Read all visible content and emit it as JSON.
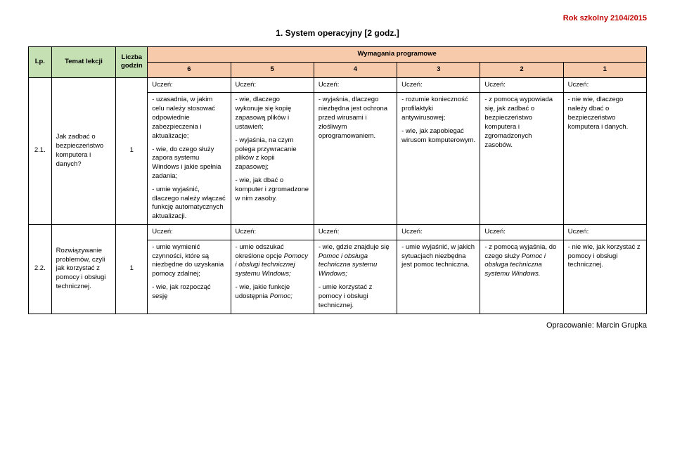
{
  "header_right": "Rok szkolny 2104/2015",
  "title": "1.   System operacyjny [2 godz.]",
  "footer_right": "Opracowanie: Marcin Grupka",
  "columns": {
    "lp": "Lp.",
    "topic": "Temat lekcji",
    "hours": "Liczba godzin",
    "req_header": "Wymagania programowe",
    "levels": [
      "6",
      "5",
      "4",
      "3",
      "2",
      "1"
    ]
  },
  "uczen_label": "Uczeń:",
  "rows": [
    {
      "lp": "2.1.",
      "topic": "Jak zadbać o bezpieczeństwo komputera i danych?",
      "hours": "1",
      "cells": [
        [
          "- uzasadnia, w jakim celu należy stosować odpowiednie zabezpieczenia i aktualizacje;",
          "- wie, do czego służy zapora systemu Windows i jakie spełnia zadania;",
          "- umie wyjaśnić, dlaczego należy włączać funkcję automatycznych aktualizacji."
        ],
        [
          "- wie, dlaczego wykonuje się kopię zapasową plików i ustawień;",
          "- wyjaśnia, na czym polega przywracanie plików z kopii zapasowej;",
          "- wie, jak dbać o komputer i zgromadzone w nim zasoby."
        ],
        [
          "- wyjaśnia, dlaczego niezbędna jest ochrona przed wirusami i złośliwym oprogramowaniem."
        ],
        [
          "- rozumie konieczność profilaktyki antywirusowej;",
          "- wie, jak zapobiegać wirusom komputerowym."
        ],
        [
          "- z pomocą wypowiada się, jak zadbać o bezpieczeństwo komputera i zgromadzonych zasobów."
        ],
        [
          "- nie wie, dlaczego należy dbać o bezpieczeństwo komputera i danych."
        ]
      ]
    },
    {
      "lp": "2.2.",
      "topic": "Rozwiązywanie problemów, czyli jak korzystać z pomocy i obsługi technicznej.",
      "hours": "1",
      "cells": [
        [
          "- umie wymienić czynności, które są niezbędne do uzyskania pomocy zdalnej;",
          "- wie, jak rozpocząć sesję"
        ],
        [
          "- umie odszukać określone opcje <i>Pomocy i obsługi technicznej systemu Windows;</i>",
          "- wie, jakie funkcje udostępnia <i>Pomoc;</i>"
        ],
        [
          "- wie, gdzie znajduje się <i>Pomoc i obsługa techniczna systemu Windows;</i>",
          "- umie korzystać z pomocy i obsługi technicznej."
        ],
        [
          "- umie wyjaśnić, w jakich sytuacjach niezbędna jest pomoc techniczna."
        ],
        [
          "- z pomocą wyjaśnia, do czego służy <i>Pomoc i obsługa techniczna systemu Windows.</i>"
        ],
        [
          "- nie wie, jak korzystać z pomocy i obsługi technicznej."
        ]
      ]
    }
  ]
}
